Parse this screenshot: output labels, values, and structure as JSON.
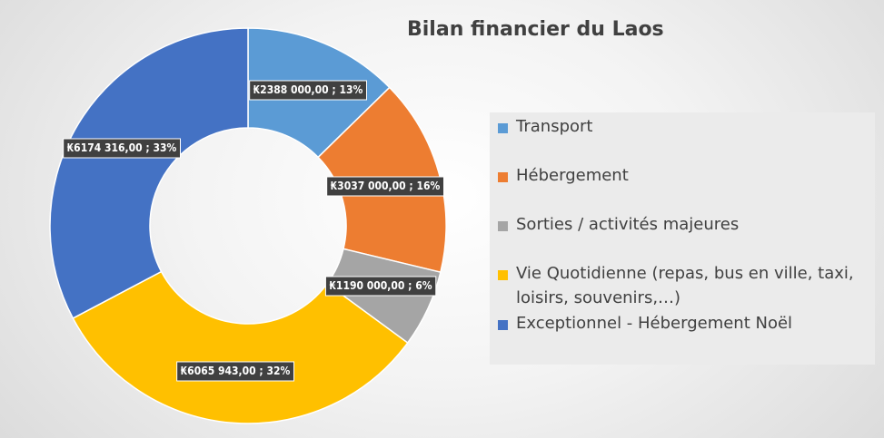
{
  "chart_data": {
    "type": "pie",
    "variant": "doughnut",
    "title": "Bilan financier du Laos",
    "currency_symbol": "₭",
    "legend_position": "right",
    "series": [
      {
        "name": "Transport",
        "value": 2388000.0,
        "label": "₭2388 000,00 ; 13%",
        "color": "#5b9bd5"
      },
      {
        "name": "Hébergement",
        "value": 3037000.0,
        "label": "₭3037 000,00 ; 16%",
        "color": "#ed7d31"
      },
      {
        "name": "Sorties / activités majeures",
        "value": 1190000.0,
        "label": "₭1190 000,00 ; 6%",
        "color": "#a5a5a5"
      },
      {
        "name": "Vie Quotidienne (repas, bus en ville, taxi, loisirs, souvenirs,…)",
        "value": 6065943.0,
        "label": "₭6065 943,00 ; 32%",
        "color": "#ffc000"
      },
      {
        "name": "Exceptionnel - Hébergement Noël",
        "value": 6174316.0,
        "label": "₭6174 316,00 ; 33%",
        "color": "#4472c4"
      }
    ]
  }
}
